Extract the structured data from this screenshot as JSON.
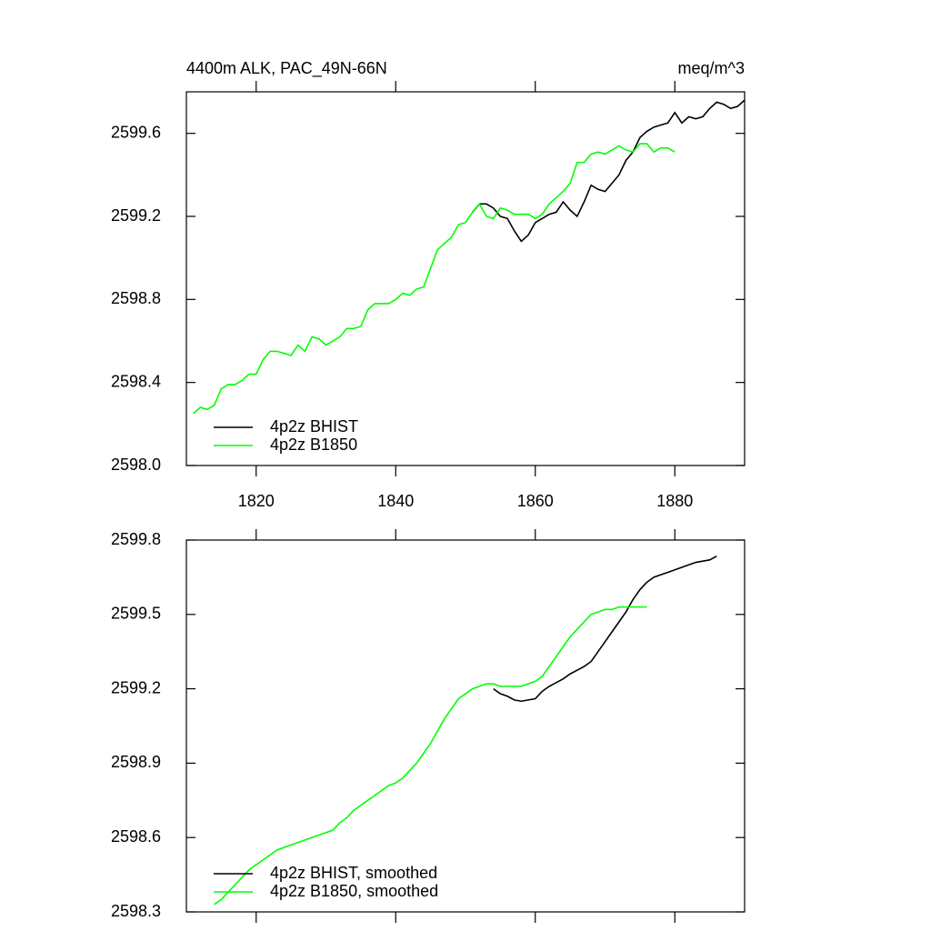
{
  "chart_data": [
    {
      "type": "line",
      "title": "4400m ALK, PAC_49N-66N",
      "subtitle": "meq/m^3",
      "x": [
        1811,
        1812,
        1813,
        1814,
        1815,
        1816,
        1817,
        1818,
        1819,
        1820,
        1821,
        1822,
        1823,
        1824,
        1825,
        1826,
        1827,
        1828,
        1829,
        1830,
        1831,
        1832,
        1833,
        1834,
        1835,
        1836,
        1837,
        1838,
        1839,
        1840,
        1841,
        1842,
        1843,
        1844,
        1845,
        1846,
        1847,
        1848,
        1849,
        1850,
        1851,
        1852,
        1853,
        1854,
        1855,
        1856,
        1857,
        1858,
        1859,
        1860,
        1861,
        1862,
        1863,
        1864,
        1865,
        1866,
        1867,
        1868,
        1869,
        1870,
        1871,
        1872,
        1873,
        1874,
        1875,
        1876,
        1877,
        1878,
        1879,
        1880,
        1881,
        1882,
        1883,
        1884,
        1885,
        1886,
        1887,
        1888,
        1889,
        1890
      ],
      "series": [
        {
          "name": "4p2z BHIST",
          "color": "#000000",
          "values": [
            null,
            null,
            null,
            null,
            null,
            null,
            null,
            null,
            null,
            null,
            null,
            null,
            null,
            null,
            null,
            null,
            null,
            null,
            null,
            null,
            null,
            null,
            null,
            null,
            null,
            null,
            null,
            null,
            null,
            null,
            null,
            null,
            null,
            null,
            null,
            null,
            null,
            null,
            null,
            null,
            2599.22,
            2599.26,
            2599.26,
            2599.24,
            2599.2,
            2599.19,
            2599.13,
            2599.08,
            2599.11,
            2599.17,
            2599.19,
            2599.21,
            2599.22,
            2599.27,
            2599.23,
            2599.2,
            2599.27,
            2599.35,
            2599.33,
            2599.32,
            2599.36,
            2599.4,
            2599.47,
            2599.51,
            2599.58,
            2599.61,
            2599.63,
            2599.64,
            2599.65,
            2599.7,
            2599.65,
            2599.68,
            2599.67,
            2599.68,
            2599.72,
            2599.75,
            2599.74,
            2599.72,
            2599.73,
            2599.76
          ]
        },
        {
          "name": "4p2z B1850",
          "color": "#00ff00",
          "values": [
            2598.25,
            2598.28,
            2598.27,
            2598.29,
            2598.37,
            2598.39,
            2598.39,
            2598.41,
            2598.44,
            2598.44,
            2598.51,
            2598.55,
            2598.55,
            2598.54,
            2598.53,
            2598.58,
            2598.55,
            2598.62,
            2598.61,
            2598.58,
            2598.6,
            2598.62,
            2598.66,
            2598.66,
            2598.67,
            2598.75,
            2598.78,
            2598.78,
            2598.78,
            2598.8,
            2598.83,
            2598.82,
            2598.85,
            2598.86,
            2598.95,
            2599.04,
            2599.07,
            2599.1,
            2599.16,
            2599.17,
            2599.22,
            2599.26,
            2599.2,
            2599.19,
            2599.24,
            2599.23,
            2599.21,
            2599.21,
            2599.21,
            2599.19,
            2599.21,
            2599.26,
            2599.29,
            2599.32,
            2599.36,
            2599.46,
            2599.46,
            2599.5,
            2599.51,
            2599.5,
            2599.52,
            2599.54,
            2599.52,
            2599.51,
            2599.55,
            2599.55,
            2599.51,
            2599.53,
            2599.53,
            2599.51,
            null,
            null,
            null,
            null,
            null,
            null,
            null,
            null,
            null,
            null
          ]
        }
      ],
      "xlim": [
        1810,
        1890
      ],
      "xticks": [
        1820,
        1840,
        1860,
        1880
      ],
      "ylim": [
        2598,
        2599.8
      ],
      "yticks": [
        {
          "value": 2598,
          "label": "2598.0"
        },
        2598.4,
        2598.8,
        2599.2,
        2599.6
      ],
      "legend": "lower left"
    },
    {
      "type": "line",
      "x": [
        1814,
        1815,
        1816,
        1817,
        1818,
        1819,
        1820,
        1821,
        1822,
        1823,
        1824,
        1825,
        1826,
        1827,
        1828,
        1829,
        1830,
        1831,
        1832,
        1833,
        1834,
        1835,
        1836,
        1837,
        1838,
        1839,
        1840,
        1841,
        1842,
        1843,
        1844,
        1845,
        1846,
        1847,
        1848,
        1849,
        1850,
        1851,
        1852,
        1853,
        1854,
        1855,
        1856,
        1857,
        1858,
        1859,
        1860,
        1861,
        1862,
        1863,
        1864,
        1865,
        1866,
        1867,
        1868,
        1869,
        1870,
        1871,
        1872,
        1873,
        1874,
        1875,
        1876,
        1877,
        1878,
        1879,
        1880,
        1881,
        1882,
        1883,
        1884,
        1885,
        1886
      ],
      "series": [
        {
          "name": "4p2z BHIST, smoothed",
          "color": "#000000",
          "values": [
            null,
            null,
            null,
            null,
            null,
            null,
            null,
            null,
            null,
            null,
            null,
            null,
            null,
            null,
            null,
            null,
            null,
            null,
            null,
            null,
            null,
            null,
            null,
            null,
            null,
            null,
            null,
            null,
            null,
            null,
            null,
            null,
            null,
            null,
            null,
            null,
            null,
            null,
            null,
            null,
            2599.2,
            2599.18,
            2599.17,
            2599.155,
            2599.15,
            2599.155,
            2599.16,
            2599.19,
            2599.21,
            2599.225,
            2599.24,
            2599.26,
            2599.275,
            2599.29,
            2599.31,
            2599.35,
            2599.39,
            2599.43,
            2599.47,
            2599.51,
            2599.56,
            2599.6,
            2599.63,
            2599.65,
            2599.66,
            2599.67,
            2599.68,
            2599.69,
            2599.7,
            2599.71,
            2599.715,
            2599.72,
            2599.735
          ]
        },
        {
          "name": "4p2z B1850, smoothed",
          "color": "#00ff00",
          "values": [
            2598.33,
            2598.35,
            2598.38,
            2598.41,
            2598.44,
            2598.47,
            2598.49,
            2598.51,
            2598.53,
            2598.55,
            2598.56,
            2598.57,
            2598.58,
            2598.59,
            2598.6,
            2598.61,
            2598.62,
            2598.63,
            2598.66,
            2598.68,
            2598.71,
            2598.73,
            2598.75,
            2598.77,
            2598.79,
            2598.81,
            2598.82,
            2598.84,
            2598.87,
            2598.9,
            2598.94,
            2598.98,
            2599.03,
            2599.08,
            2599.12,
            2599.16,
            2599.18,
            2599.2,
            2599.21,
            2599.22,
            2599.22,
            2599.21,
            2599.21,
            2599.21,
            2599.21,
            2599.22,
            2599.23,
            2599.25,
            2599.29,
            2599.33,
            2599.37,
            2599.41,
            2599.44,
            2599.47,
            2599.5,
            2599.51,
            2599.52,
            2599.52,
            2599.53,
            2599.53,
            2599.53,
            2599.53,
            2599.53,
            null,
            null,
            null,
            null,
            null,
            null,
            null,
            null,
            null,
            null
          ]
        }
      ],
      "xlim": [
        1810,
        1890
      ],
      "ylim": [
        2598.3,
        2599.8
      ],
      "yticks": [
        2598.3,
        2598.6,
        2598.9,
        2599.2,
        2599.5,
        2599.8
      ],
      "legend": "lower left"
    }
  ]
}
